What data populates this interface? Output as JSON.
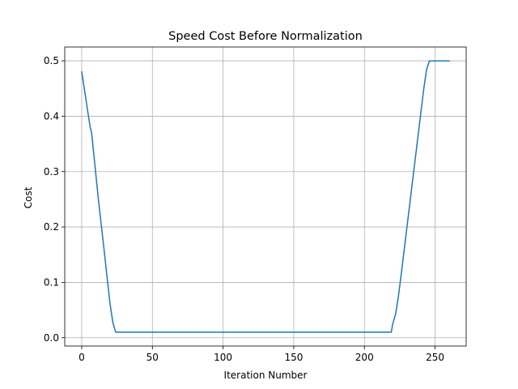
{
  "chart_data": {
    "type": "line",
    "title": "Speed Cost Before Normalization",
    "xlabel": "Iteration Number",
    "ylabel": "Cost",
    "xlim": [
      -12,
      272
    ],
    "ylim": [
      -0.015,
      0.525
    ],
    "xticks": [
      0,
      50,
      100,
      150,
      200,
      250
    ],
    "yticks": [
      0.0,
      0.1,
      0.2,
      0.3,
      0.4,
      0.5
    ],
    "grid": true,
    "legend": "none",
    "colors": {
      "line": "#1f77b4",
      "grid": "#b0b0b0"
    },
    "series": [
      {
        "x": [
          0,
          2,
          4,
          6,
          7,
          8,
          10,
          12,
          14,
          16,
          18,
          20,
          22,
          24,
          26,
          50,
          100,
          150,
          200,
          219,
          220,
          222,
          224,
          226,
          228,
          230,
          232,
          234,
          236,
          238,
          240,
          242,
          244,
          246,
          260
        ],
        "values": [
          0.48,
          0.447,
          0.413,
          0.38,
          0.37,
          0.345,
          0.295,
          0.245,
          0.2,
          0.155,
          0.108,
          0.062,
          0.028,
          0.01,
          0.01,
          0.01,
          0.01,
          0.01,
          0.01,
          0.01,
          0.025,
          0.042,
          0.074,
          0.114,
          0.156,
          0.198,
          0.24,
          0.282,
          0.324,
          0.366,
          0.408,
          0.45,
          0.485,
          0.5,
          0.5
        ]
      }
    ]
  }
}
